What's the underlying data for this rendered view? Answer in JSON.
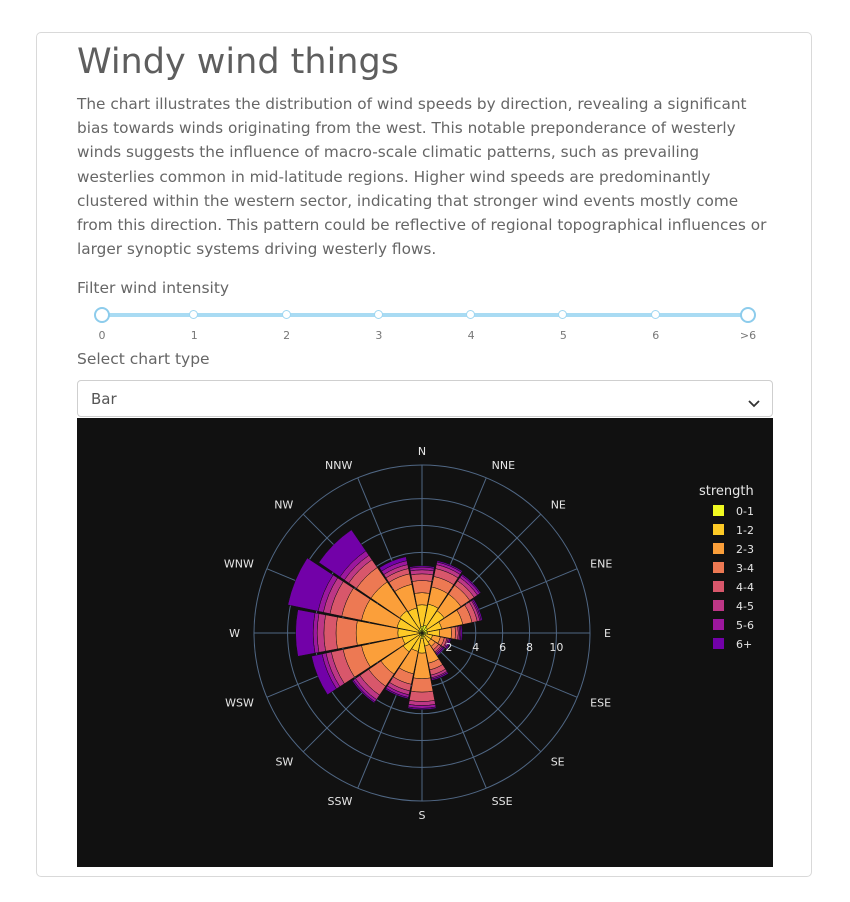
{
  "page": {
    "title": "Windy wind things",
    "description": "The chart illustrates the distribution of wind speeds by direction, revealing a significant bias towards winds originating from the west. This notable preponderance of westerly winds suggests the influence of macro-scale climatic patterns, such as prevailing westerlies common in mid-latitude regions. Higher wind speeds are predominantly clustered within the western sector, indicating that stronger wind events mostly come from this direction. This pattern could be reflective of regional topographical influences or larger synoptic systems driving westerly flows."
  },
  "filter": {
    "label": "Filter wind intensity",
    "ticks": [
      "0",
      "1",
      "2",
      "3",
      "4",
      "5",
      "6",
      ">6"
    ],
    "range": [
      0,
      7
    ]
  },
  "chart_type": {
    "label": "Select chart type",
    "selected": "Bar"
  },
  "chart_data": {
    "type": "barpolar",
    "directions": [
      "N",
      "NNE",
      "NE",
      "ENE",
      "E",
      "ESE",
      "SE",
      "SSE",
      "S",
      "SSW",
      "SW",
      "WSW",
      "W",
      "WNW",
      "NW",
      "NNW"
    ],
    "radial_ticks": [
      "2",
      "4",
      "6",
      "8",
      "10"
    ],
    "radial_range": [
      0,
      12.5
    ],
    "legend_title": "strength",
    "legend_placement": "top-right",
    "background": "#111111",
    "grid_color": "#506784",
    "series": [
      {
        "name": "0-1",
        "color": "#f0f921",
        "values": [
          0.5,
          0.6,
          0.5,
          0.4,
          0.4,
          0.3,
          0.2,
          0.3,
          0.4,
          0.2,
          0.3,
          0.2,
          0.2,
          0.3,
          0.3,
          0.4
        ]
      },
      {
        "name": "1-2",
        "color": "#fdca26",
        "values": [
          1.6,
          1.6,
          1.5,
          1.1,
          0.9,
          0.5,
          0.6,
          0.7,
          1.1,
          1.2,
          1.4,
          1.3,
          1.6,
          1.6,
          1.7,
          1.5
        ]
      },
      {
        "name": "2-3",
        "color": "#fb9f3a",
        "values": [
          0.9,
          1.3,
          1.5,
          1.6,
          0.9,
          0.6,
          0.4,
          1.3,
          1.9,
          1.7,
          2.0,
          3.1,
          3.1,
          2.7,
          2.6,
          1.8
        ]
      },
      {
        "name": "3-4",
        "color": "#ed7953",
        "values": [
          0.9,
          0.8,
          0.8,
          0.7,
          0.3,
          0.3,
          0.3,
          0.5,
          1.0,
          0.8,
          1.1,
          1.4,
          1.5,
          1.5,
          1.3,
          0.8
        ]
      },
      {
        "name": "4-4",
        "color": "#d8576b",
        "values": [
          0.5,
          0.6,
          0.4,
          0.4,
          0.2,
          0.2,
          0.2,
          0.4,
          0.7,
          0.5,
          0.8,
          0.9,
          0.9,
          0.9,
          0.7,
          0.4
        ]
      },
      {
        "name": "4-5",
        "color": "#bd3786",
        "values": [
          0.3,
          0.3,
          0.3,
          0.2,
          0.1,
          0.1,
          0.1,
          0.2,
          0.3,
          0.3,
          0.4,
          0.4,
          0.5,
          0.5,
          0.4,
          0.3
        ]
      },
      {
        "name": "5-6",
        "color": "#9c179e",
        "values": [
          0.2,
          0.2,
          0.2,
          0.1,
          0.1,
          0.1,
          0.1,
          0.1,
          0.2,
          0.2,
          0.2,
          0.3,
          0.3,
          0.4,
          0.4,
          0.3
        ]
      },
      {
        "name": "6+",
        "color": "#7201a8",
        "values": [
          0.1,
          0.1,
          0.1,
          0.1,
          0.1,
          0.1,
          0.1,
          0.1,
          0.1,
          0.1,
          0.1,
          0.8,
          1.3,
          2.3,
          1.9,
          0.3
        ]
      }
    ]
  }
}
